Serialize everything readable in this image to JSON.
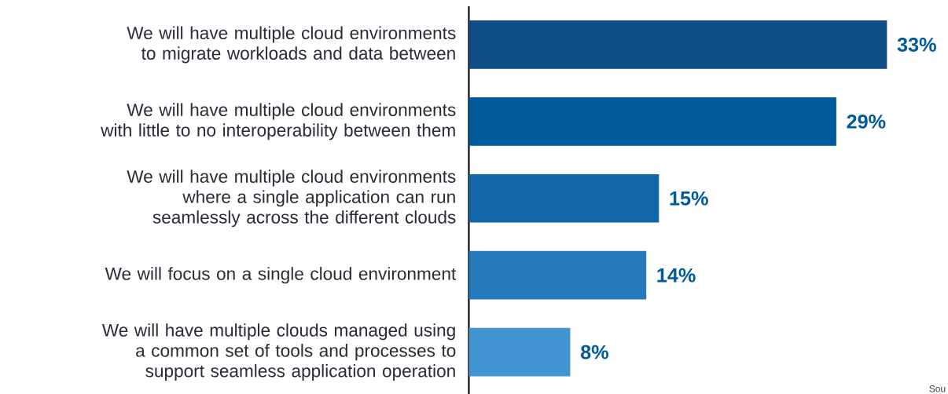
{
  "chart_data": {
    "type": "bar",
    "orientation": "horizontal",
    "categories": [
      "We will have multiple cloud environments to migrate workloads and data between",
      "We will have multiple cloud environments with little to no interoperability between them",
      "We will have multiple cloud environments where a single application can run seamlessly across the different clouds",
      "We will focus on a single cloud environment",
      "We will have multiple clouds managed using a common set of tools and processes to support seamless application operation"
    ],
    "values": [
      33,
      29,
      15,
      14,
      8
    ],
    "value_labels": [
      "33%",
      "29%",
      "15%",
      "14%",
      "8%"
    ],
    "colors": [
      "#104c86",
      "#005a9c",
      "#1167a8",
      "#2478bb",
      "#4395d1"
    ],
    "annotations": [
      "Sou"
    ]
  }
}
